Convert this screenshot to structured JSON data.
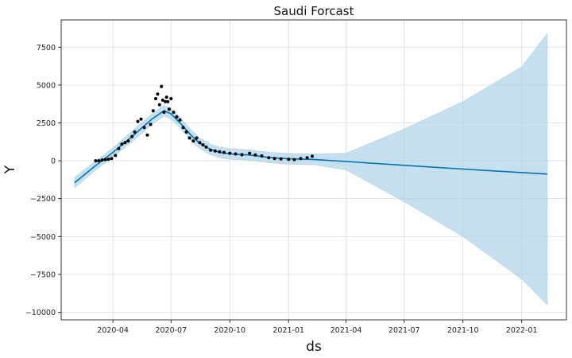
{
  "chart_data": {
    "type": "line",
    "title": "Saudi Forcast",
    "xlabel": "ds",
    "ylabel": "Y",
    "ylim": [
      -10500,
      9300
    ],
    "xlim": [
      "2020-01-11",
      "2022-03-12"
    ],
    "grid": true,
    "x_ticks": [
      "2020-04",
      "2020-07",
      "2020-10",
      "2021-01",
      "2021-04",
      "2021-07",
      "2021-10",
      "2022-01"
    ],
    "y_ticks": [
      -10000,
      -7500,
      -5000,
      -2500,
      0,
      2500,
      5000,
      7500
    ],
    "colors": {
      "forecast_line": "#0072b2",
      "uncertainty_band": "#a8cfe6",
      "observed_points": "#000000",
      "grid": "#dcdcdc"
    },
    "forecast": {
      "name": "yhat",
      "x": [
        "2020-02-01",
        "2020-03-01",
        "2020-04-01",
        "2020-05-01",
        "2020-06-01",
        "2020-06-20",
        "2020-07-01",
        "2020-07-15",
        "2020-08-01",
        "2020-08-15",
        "2020-09-01",
        "2020-09-15",
        "2020-10-01",
        "2020-10-15",
        "2020-11-01",
        "2020-12-01",
        "2021-01-01",
        "2021-02-10",
        "2021-04-01",
        "2021-07-01",
        "2021-10-01",
        "2022-01-01",
        "2022-02-10"
      ],
      "yhat": [
        -1450,
        -450,
        550,
        1600,
        2750,
        3300,
        3100,
        2500,
        1700,
        1150,
        750,
        550,
        450,
        420,
        380,
        220,
        130,
        90,
        -50,
        -300,
        -550,
        -780,
        -880
      ],
      "lower": [
        -1800,
        -750,
        250,
        1250,
        2400,
        2950,
        2750,
        2150,
        1350,
        800,
        400,
        200,
        100,
        80,
        40,
        -120,
        -220,
        -270,
        -600,
        -2700,
        -5000,
        -7800,
        -9500
      ],
      "upper": [
        -1100,
        -150,
        850,
        1950,
        3100,
        3650,
        3450,
        2850,
        2050,
        1500,
        1100,
        900,
        800,
        760,
        720,
        560,
        480,
        450,
        500,
        2100,
        3900,
        6200,
        8400
      ]
    },
    "observed": {
      "name": "y",
      "x": [
        "2020-03-05",
        "2020-03-10",
        "2020-03-15",
        "2020-03-20",
        "2020-03-25",
        "2020-03-30",
        "2020-04-05",
        "2020-04-10",
        "2020-04-15",
        "2020-04-20",
        "2020-04-25",
        "2020-05-01",
        "2020-05-05",
        "2020-05-10",
        "2020-05-15",
        "2020-05-20",
        "2020-05-25",
        "2020-05-30",
        "2020-06-03",
        "2020-06-07",
        "2020-06-10",
        "2020-06-13",
        "2020-06-16",
        "2020-06-18",
        "2020-06-20",
        "2020-06-22",
        "2020-06-24",
        "2020-06-26",
        "2020-06-28",
        "2020-07-01",
        "2020-07-05",
        "2020-07-10",
        "2020-07-15",
        "2020-07-20",
        "2020-07-25",
        "2020-07-30",
        "2020-08-05",
        "2020-08-10",
        "2020-08-15",
        "2020-08-20",
        "2020-08-25",
        "2020-09-01",
        "2020-09-08",
        "2020-09-15",
        "2020-09-22",
        "2020-10-01",
        "2020-10-10",
        "2020-10-20",
        "2020-11-01",
        "2020-11-10",
        "2020-11-20",
        "2020-12-01",
        "2020-12-10",
        "2020-12-20",
        "2021-01-01",
        "2021-01-10",
        "2021-01-20",
        "2021-01-30",
        "2021-02-07"
      ],
      "y": [
        0,
        0,
        50,
        80,
        100,
        150,
        350,
        800,
        1100,
        1200,
        1300,
        1600,
        1900,
        2600,
        2750,
        2200,
        1700,
        2400,
        3300,
        4100,
        4400,
        3700,
        4900,
        4000,
        3200,
        3900,
        4200,
        3900,
        3400,
        4100,
        3200,
        2900,
        2700,
        2200,
        1900,
        1500,
        1300,
        1500,
        1200,
        1050,
        900,
        700,
        650,
        600,
        550,
        500,
        450,
        400,
        500,
        380,
        320,
        200,
        150,
        120,
        100,
        80,
        150,
        200,
        300
      ]
    }
  }
}
